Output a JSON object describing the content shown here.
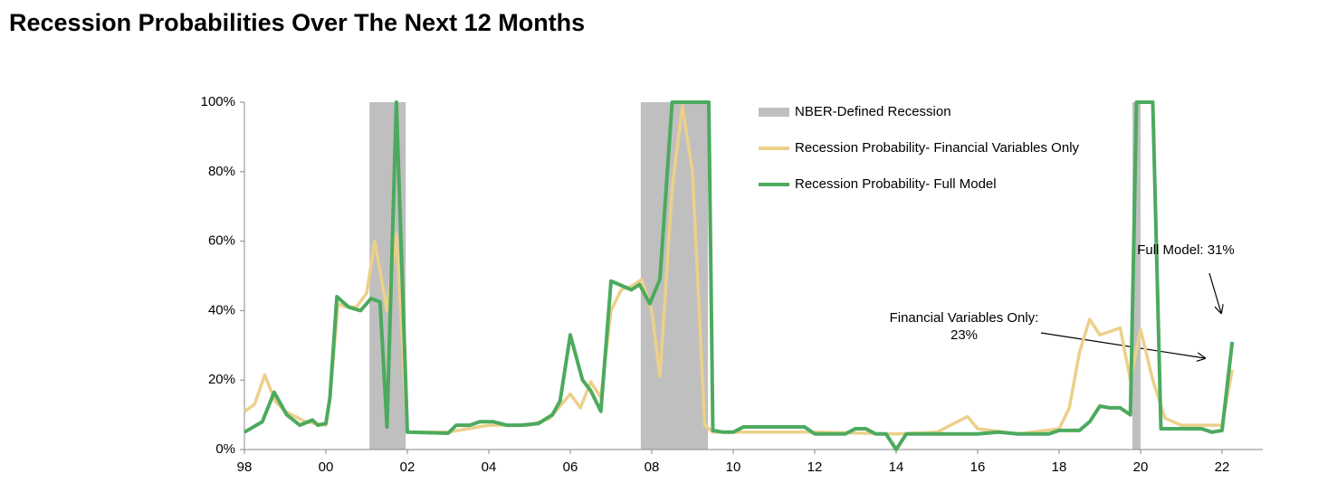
{
  "chart_data": {
    "type": "line",
    "title": "Recession Probabilities Over The Next 12 Months",
    "xlim": [
      1998,
      2023
    ],
    "xticks": [
      {
        "value": 1998,
        "label": "98"
      },
      {
        "value": 2000,
        "label": "00"
      },
      {
        "value": 2002,
        "label": "02"
      },
      {
        "value": 2004,
        "label": "04"
      },
      {
        "value": 2006,
        "label": "06"
      },
      {
        "value": 2008,
        "label": "08"
      },
      {
        "value": 2010,
        "label": "10"
      },
      {
        "value": 2012,
        "label": "12"
      },
      {
        "value": 2014,
        "label": "14"
      },
      {
        "value": 2016,
        "label": "16"
      },
      {
        "value": 2018,
        "label": "18"
      },
      {
        "value": 2020,
        "label": "20"
      },
      {
        "value": 2022,
        "label": "22"
      }
    ],
    "ylim": [
      0,
      100
    ],
    "yticks": [
      {
        "value": 0,
        "label": "0%"
      },
      {
        "value": 20,
        "label": "20%"
      },
      {
        "value": 40,
        "label": "40%"
      },
      {
        "value": 60,
        "label": "60%"
      },
      {
        "value": 80,
        "label": "80%"
      },
      {
        "value": 100,
        "label": "100%"
      }
    ],
    "recession_name": "NBER-Defined Recession",
    "recession_color": "#bfbfbf",
    "recessions": [
      [
        2001.07,
        2001.96
      ],
      [
        2007.73,
        2009.38
      ],
      [
        2019.8,
        2020.0
      ]
    ],
    "series": [
      {
        "name": "Recession Probability- Financial Variables Only",
        "color": "#ecd08a",
        "x": [
          1998.0,
          1998.25,
          1998.5,
          1998.75,
          1999.0,
          1999.5,
          2000.0,
          2000.1,
          2000.3,
          2000.5,
          2000.75,
          2001.0,
          2001.2,
          2001.5,
          2001.73,
          2002.0,
          2003.0,
          2004.0,
          2005.0,
          2005.5,
          2006.0,
          2006.25,
          2006.5,
          2006.75,
          2007.0,
          2007.25,
          2007.5,
          2007.75,
          2008.0,
          2008.2,
          2008.5,
          2008.75,
          2009.0,
          2009.3,
          2009.5,
          2010.0,
          2012.0,
          2014.0,
          2015.0,
          2015.75,
          2016.0,
          2017.0,
          2018.0,
          2018.25,
          2018.5,
          2018.75,
          2019.0,
          2019.5,
          2019.75,
          2020.0,
          2020.3,
          2020.6,
          2021.0,
          2022.0,
          2022.25
        ],
        "values": [
          11,
          13,
          21.5,
          14,
          11,
          8,
          7,
          15,
          42,
          41,
          41,
          45,
          60,
          40,
          62,
          5,
          5,
          7,
          7,
          9,
          16,
          12,
          19.5,
          15,
          40,
          46,
          47,
          49,
          40,
          21,
          75,
          99,
          80,
          7,
          5,
          5,
          5,
          4.5,
          5,
          9.5,
          6,
          4.5,
          6,
          12,
          28,
          37.5,
          33,
          35,
          20,
          34.5,
          20,
          9,
          7,
          7,
          23
        ]
      },
      {
        "name": "Recession Probability- Full Model",
        "color": "#4caa5e",
        "x": [
          1998.0,
          1998.44,
          1998.73,
          1999.04,
          1999.36,
          1999.67,
          1999.8,
          2000.0,
          2000.1,
          2000.27,
          2000.56,
          2000.85,
          2001.11,
          2001.33,
          2001.5,
          2001.73,
          2002.0,
          2003.0,
          2003.2,
          2003.53,
          2003.78,
          2004.11,
          2004.44,
          2004.78,
          2005.22,
          2005.56,
          2005.75,
          2006.0,
          2006.3,
          2006.5,
          2006.75,
          2007.0,
          2007.3,
          2007.5,
          2007.7,
          2007.95,
          2008.2,
          2008.5,
          2009.4,
          2009.5,
          2009.75,
          2010.0,
          2010.25,
          2011.75,
          2012.0,
          2012.75,
          2013.0,
          2013.25,
          2013.5,
          2013.75,
          2014.0,
          2014.25,
          2016.0,
          2016.5,
          2017.0,
          2017.75,
          2018.0,
          2018.5,
          2018.75,
          2019.0,
          2019.25,
          2019.5,
          2019.75,
          2019.9,
          2020.3,
          2020.5,
          2021.0,
          2021.5,
          2021.75,
          2022.0,
          2022.25
        ],
        "values": [
          5,
          8,
          16.5,
          10,
          7,
          8.5,
          7,
          7.5,
          15,
          44,
          41,
          40,
          43.5,
          42.5,
          6.5,
          100,
          5,
          4.7,
          7,
          7,
          8,
          8,
          7,
          7,
          7.5,
          10,
          14,
          33,
          20,
          17,
          11,
          48.5,
          47,
          46,
          47.5,
          42,
          49,
          100,
          100,
          5.5,
          5,
          5,
          6.5,
          6.5,
          4.5,
          4.5,
          6,
          6,
          4.5,
          4.5,
          0,
          4.5,
          4.5,
          5,
          4.5,
          4.5,
          5.5,
          5.5,
          8,
          12.5,
          12,
          12,
          10,
          100,
          100,
          6,
          6,
          6,
          5,
          5.5,
          31
        ]
      }
    ],
    "annotations": [
      {
        "lines": [
          "Full Model: 31%"
        ]
      },
      {
        "lines": [
          "Financial Variables Only:",
          "23%"
        ]
      }
    ]
  }
}
